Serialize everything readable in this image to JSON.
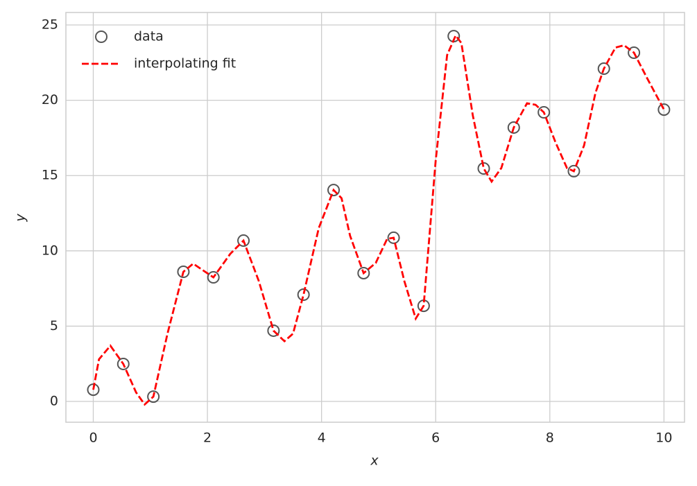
{
  "chart_data": {
    "type": "scatter_fit",
    "xlabel": "x",
    "ylabel": "y",
    "xlim": [
      -0.48,
      10.36
    ],
    "ylim": [
      -1.38,
      25.83
    ],
    "xticks": [
      0,
      2,
      4,
      6,
      8,
      10
    ],
    "yticks": [
      0,
      5,
      10,
      15,
      20,
      25
    ],
    "grid": true,
    "legend": "upper left",
    "series": [
      {
        "name": "data",
        "color": "#555555",
        "x": [
          0,
          0.526,
          1.053,
          1.579,
          2.105,
          2.632,
          3.158,
          3.684,
          4.211,
          4.737,
          5.263,
          5.789,
          6.316,
          6.842,
          7.368,
          7.895,
          8.421,
          8.947,
          9.474,
          10
        ],
        "values": [
          0.78,
          2.49,
          0.32,
          8.61,
          8.24,
          10.68,
          4.7,
          7.09,
          14.04,
          8.52,
          10.87,
          6.35,
          24.26,
          15.47,
          18.19,
          19.2,
          15.29,
          22.1,
          23.16,
          19.38
        ]
      },
      {
        "name": "interpolating fit",
        "color": "#ff0000",
        "x": [
          0,
          0.1,
          0.3,
          0.526,
          0.75,
          0.9,
          1.053,
          1.3,
          1.579,
          1.75,
          2.105,
          2.4,
          2.632,
          2.9,
          3.158,
          3.35,
          3.5,
          3.684,
          3.95,
          4.211,
          4.35,
          4.5,
          4.737,
          4.95,
          5.15,
          5.263,
          5.45,
          5.65,
          5.789,
          6.0,
          6.2,
          6.35,
          6.45,
          6.65,
          6.842,
          6.98,
          7.15,
          7.368,
          7.6,
          7.75,
          7.895,
          8.1,
          8.3,
          8.421,
          8.6,
          8.8,
          8.947,
          9.15,
          9.3,
          9.474,
          9.7,
          10
        ],
        "values": [
          0.78,
          2.8,
          3.7,
          2.49,
          0.6,
          -0.2,
          0.32,
          4.5,
          8.61,
          9.15,
          8.24,
          9.8,
          10.68,
          8.0,
          4.7,
          4.0,
          4.5,
          7.09,
          11.5,
          14.04,
          13.5,
          11.0,
          8.52,
          9.2,
          10.8,
          10.87,
          8.0,
          5.5,
          6.35,
          16.0,
          23.0,
          24.3,
          23.8,
          19.0,
          15.47,
          14.6,
          15.5,
          18.19,
          19.8,
          19.7,
          19.2,
          17.2,
          15.5,
          15.29,
          17.0,
          20.5,
          22.1,
          23.5,
          23.65,
          23.16,
          21.5,
          19.38
        ]
      }
    ]
  }
}
